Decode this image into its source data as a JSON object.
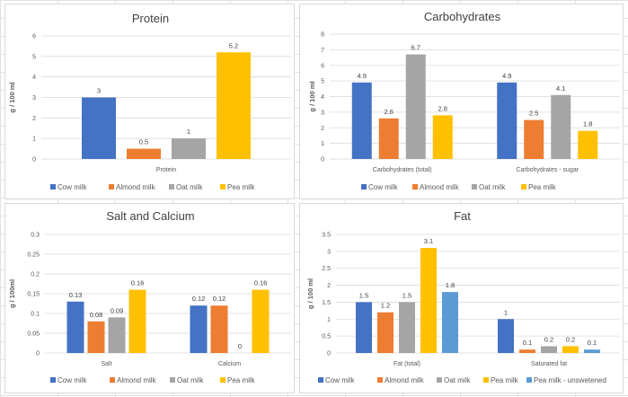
{
  "colors": {
    "cow": "#4472c4",
    "almond": "#ed7d31",
    "oat": "#a5a5a5",
    "pea": "#ffc000",
    "pea_unsweetened": "#5b9bd5",
    "grid": "#d9d9d9",
    "text": "#595959"
  },
  "chart_data": [
    {
      "type": "bar",
      "title": "Protein",
      "ylabel": "g / 100 ml",
      "categories": [
        "Protein"
      ],
      "ylim": [
        0,
        6
      ],
      "yticks": [
        "0",
        "1",
        "2",
        "3",
        "4",
        "5",
        "6"
      ],
      "series": [
        {
          "name": "Cow milk",
          "values": [
            3
          ],
          "labels": [
            "3"
          ]
        },
        {
          "name": "Almond milk",
          "values": [
            0.5
          ],
          "labels": [
            "0.5"
          ]
        },
        {
          "name": "Oat milk",
          "values": [
            1
          ],
          "labels": [
            "1"
          ]
        },
        {
          "name": "Pea milk",
          "values": [
            5.2
          ],
          "labels": [
            "5.2"
          ]
        }
      ],
      "legend": "bottom",
      "grid": true
    },
    {
      "type": "bar",
      "title": "Carbohydrates",
      "ylabel": "g / 100 ml",
      "categories": [
        "Carbohydrates (total)",
        "Carbohydrates - sugar"
      ],
      "ylim": [
        0,
        8
      ],
      "yticks": [
        "0",
        "1",
        "2",
        "3",
        "4",
        "5",
        "6",
        "7",
        "8"
      ],
      "series": [
        {
          "name": "Cow milk",
          "values": [
            4.9,
            4.9
          ],
          "labels": [
            "4.9",
            "4.9"
          ]
        },
        {
          "name": "Almond milk",
          "values": [
            2.6,
            2.5
          ],
          "labels": [
            "2.6",
            "2.5"
          ]
        },
        {
          "name": "Oat milk",
          "values": [
            6.7,
            4.1
          ],
          "labels": [
            "6.7",
            "4.1"
          ]
        },
        {
          "name": "Pea milk",
          "values": [
            2.8,
            1.8
          ],
          "labels": [
            "2.8",
            "1.8"
          ]
        }
      ],
      "legend": "bottom",
      "grid": true
    },
    {
      "type": "bar",
      "title": "Salt and Calcium",
      "ylabel": "g / 100ml",
      "categories": [
        "Salt",
        "Calcium"
      ],
      "ylim": [
        0,
        0.3
      ],
      "yticks": [
        "0",
        "0.05",
        "0.1",
        "0.15",
        "0.2",
        "0.25",
        "0.3"
      ],
      "series": [
        {
          "name": "Cow milk",
          "values": [
            0.13,
            0.12
          ],
          "labels": [
            "0.13",
            "0.12"
          ]
        },
        {
          "name": "Almond milk",
          "values": [
            0.08,
            0.12
          ],
          "labels": [
            "0.08",
            "0.12"
          ]
        },
        {
          "name": "Oat milk",
          "values": [
            0.09,
            0
          ],
          "labels": [
            "0.09",
            "0"
          ]
        },
        {
          "name": "Pea milk",
          "values": [
            0.16,
            0.16
          ],
          "labels": [
            "0.16",
            "0.16"
          ]
        }
      ],
      "legend": "bottom",
      "grid": true
    },
    {
      "type": "bar",
      "title": "Fat",
      "ylabel": "g / 100 ml",
      "categories": [
        "Fat (total)",
        "Saturated fat"
      ],
      "ylim": [
        0,
        3.5
      ],
      "yticks": [
        "0",
        "0.5",
        "1",
        "1.5",
        "2",
        "2.5",
        "3",
        "3.5"
      ],
      "series": [
        {
          "name": "Cow milk",
          "values": [
            1.5,
            1
          ],
          "labels": [
            "1.5",
            "1"
          ]
        },
        {
          "name": "Almond milk",
          "values": [
            1.2,
            0.1
          ],
          "labels": [
            "1.2",
            "0.1"
          ]
        },
        {
          "name": "Oat milk",
          "values": [
            1.5,
            0.2
          ],
          "labels": [
            "1.5",
            "0.2"
          ]
        },
        {
          "name": "Pea milk",
          "values": [
            3.1,
            0.2
          ],
          "labels": [
            "3.1",
            "0.2"
          ]
        },
        {
          "name": "Pea milk - unswetened",
          "values": [
            1.8,
            0.1
          ],
          "labels": [
            "1.8",
            "0.1"
          ]
        }
      ],
      "legend": "bottom",
      "grid": true
    }
  ]
}
